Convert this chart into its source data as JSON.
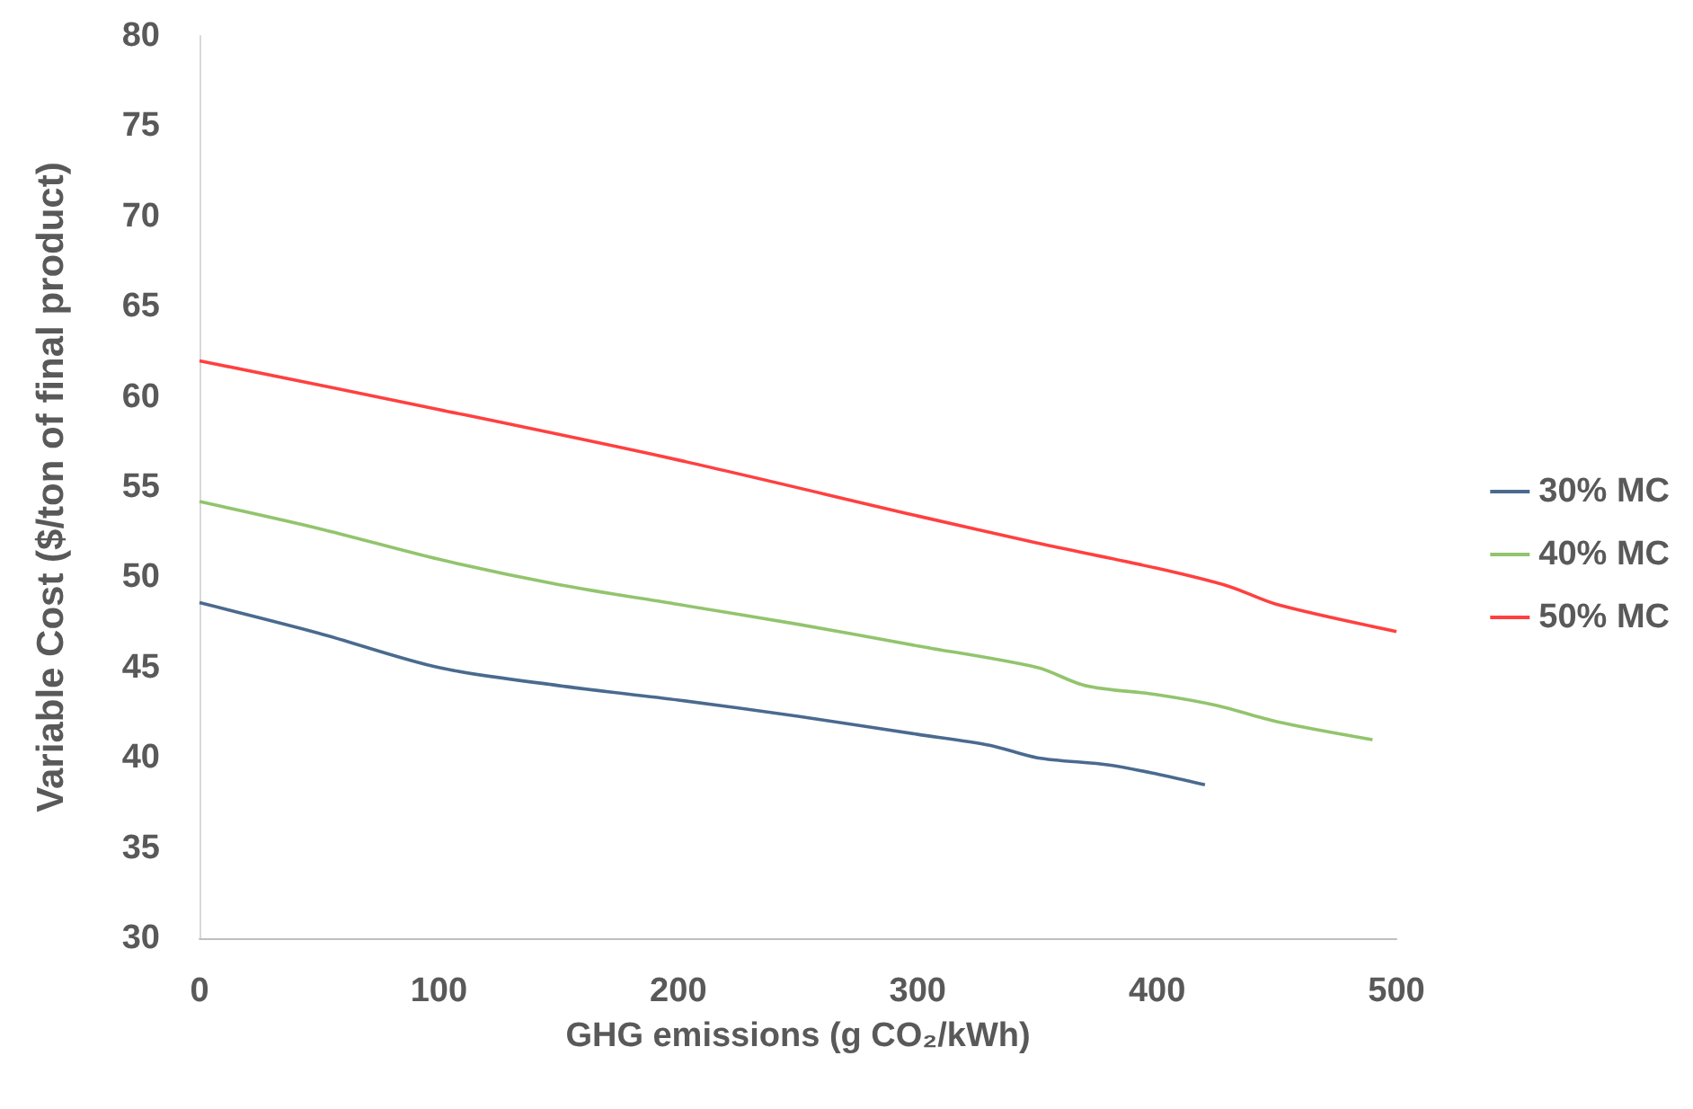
{
  "chart_data": {
    "type": "line",
    "xlabel": "GHG emissions (g CO₂/kWh)",
    "ylabel": "Variable Cost ($/ton of final product)",
    "xlim": [
      0,
      500
    ],
    "xticks": [
      0,
      100,
      200,
      300,
      400,
      500
    ],
    "ylim": [
      30,
      80
    ],
    "yticks": [
      30,
      35,
      40,
      45,
      50,
      55,
      60,
      65,
      70,
      75,
      80
    ],
    "grid": false,
    "legend": "right",
    "marker": "none",
    "line_style": "solid",
    "series": [
      {
        "name": "30% MC",
        "color": "#4a6a8f",
        "x": [
          0,
          50,
          100,
          150,
          200,
          250,
          300,
          330,
          350,
          380,
          400,
          420
        ],
        "values": [
          48.6,
          46.9,
          45.0,
          44.0,
          43.2,
          42.3,
          41.3,
          40.7,
          40.0,
          39.6,
          39.1,
          38.5
        ]
      },
      {
        "name": "40% MC",
        "color": "#92c46d",
        "x": [
          0,
          50,
          100,
          150,
          200,
          250,
          300,
          350,
          370,
          400,
          425,
          450,
          490
        ],
        "values": [
          54.2,
          52.7,
          51.0,
          49.6,
          48.5,
          47.4,
          46.2,
          45.0,
          44.0,
          43.5,
          42.9,
          42.0,
          41.0
        ]
      },
      {
        "name": "50% MC",
        "color": "#ff4040",
        "x": [
          0,
          100,
          200,
          300,
          350,
          400,
          430,
          450,
          500
        ],
        "values": [
          62.0,
          59.3,
          56.5,
          53.4,
          51.9,
          50.5,
          49.5,
          48.5,
          47.0
        ]
      }
    ]
  }
}
